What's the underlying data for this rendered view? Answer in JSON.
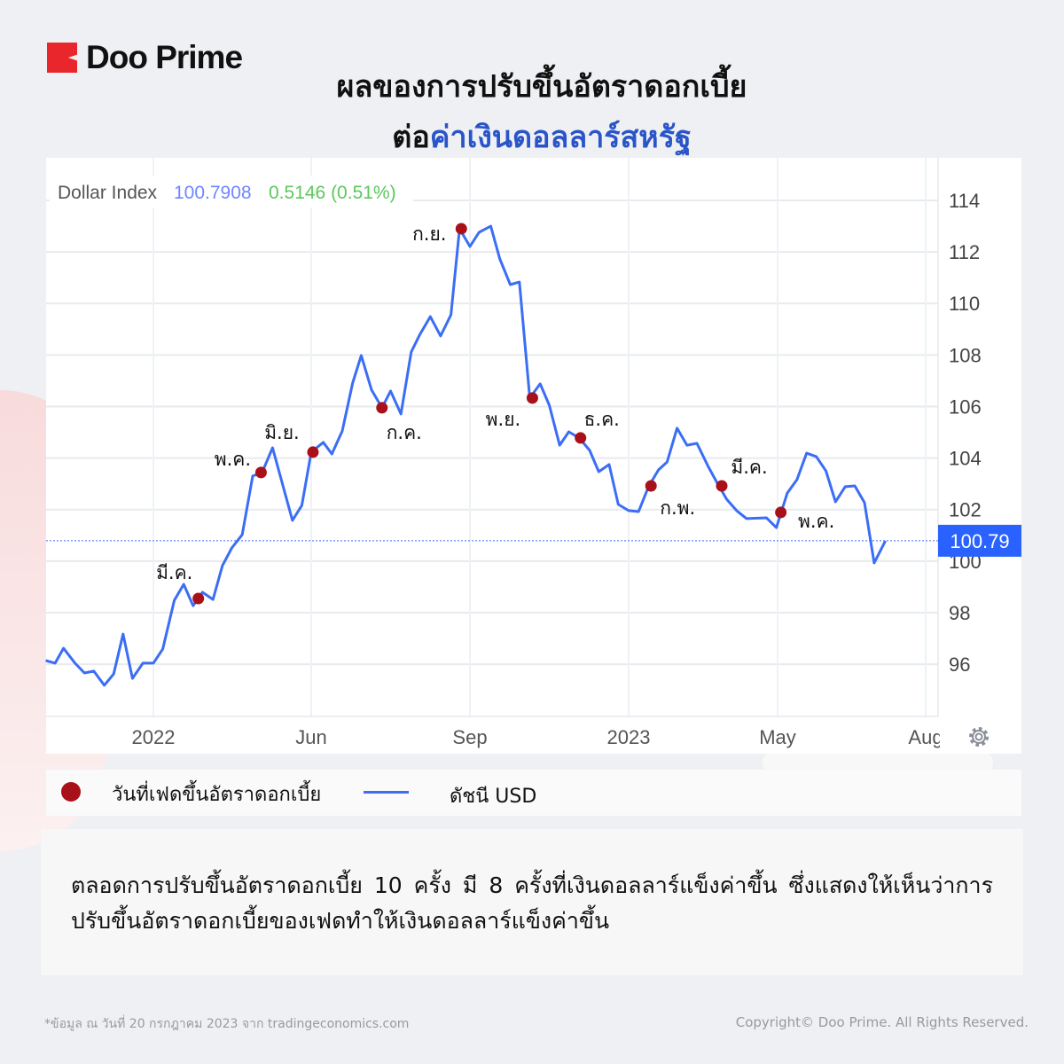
{
  "brand": {
    "name": "Doo Prime",
    "color": "#e8262c"
  },
  "title": {
    "line1": "ผลของการปรับขึ้นอัตราดอกเบี้ย",
    "line2_prefix": "ต่อ",
    "line2_highlight": "ค่าเงินดอลลาร์สหรัฐ",
    "highlight_color": "#2a55c8"
  },
  "chart_data": {
    "type": "line",
    "header": {
      "name": "Dollar Index",
      "price": "100.7908",
      "change": "0.5146 (0.51%)"
    },
    "ylim": [
      94,
      115
    ],
    "y_ticks": [
      96,
      98,
      100,
      102,
      104,
      106,
      108,
      110,
      112,
      114
    ],
    "x_ticks": [
      {
        "label": "2022",
        "date": "2022-01-01"
      },
      {
        "label": "Jun",
        "date": "2022-06-01"
      },
      {
        "label": "Sep",
        "date": "2022-09-01"
      },
      {
        "label": "2023",
        "date": "2023-01-01"
      },
      {
        "label": "May",
        "date": "2023-05-01"
      },
      {
        "label": "Aug",
        "date": "2023-08-01"
      }
    ],
    "last_price_label": "100.79",
    "grid": true,
    "line_color": "#3b6ef5",
    "marker_color": "#a8101a",
    "series": [
      {
        "name": "ดัชนี USD",
        "points": [
          [
            "2021-09-20",
            96.14
          ],
          [
            "2021-09-29",
            96.04
          ],
          [
            "2021-10-07",
            96.62
          ],
          [
            "2021-10-18",
            96.04
          ],
          [
            "2021-10-27",
            95.66
          ],
          [
            "2021-11-05",
            95.73
          ],
          [
            "2021-11-15",
            95.18
          ],
          [
            "2021-11-24",
            95.62
          ],
          [
            "2021-12-03",
            97.17
          ],
          [
            "2021-12-12",
            95.45
          ],
          [
            "2021-12-22",
            96.04
          ],
          [
            "2022-01-01",
            96.04
          ],
          [
            "2022-01-10",
            96.59
          ],
          [
            "2022-01-21",
            98.48
          ],
          [
            "2022-01-30",
            99.1
          ],
          [
            "2022-02-08",
            98.27
          ],
          [
            "2022-02-17",
            98.79
          ],
          [
            "2022-02-27",
            98.51
          ],
          [
            "2022-03-08",
            99.82
          ],
          [
            "2022-03-17",
            100.51
          ],
          [
            "2022-03-27",
            101.03
          ],
          [
            "2022-04-06",
            103.3
          ],
          [
            "2022-04-15",
            103.44
          ],
          [
            "2022-04-25",
            104.4
          ],
          [
            "2022-05-14",
            101.58
          ],
          [
            "2022-05-23",
            102.16
          ],
          [
            "2022-06-01",
            104.23
          ],
          [
            "2022-06-08",
            104.61
          ],
          [
            "2022-06-13",
            104.16
          ],
          [
            "2022-06-19",
            105.05
          ],
          [
            "2022-06-25",
            106.91
          ],
          [
            "2022-06-30",
            107.98
          ],
          [
            "2022-07-06",
            106.64
          ],
          [
            "2022-07-12",
            105.95
          ],
          [
            "2022-07-17",
            106.6
          ],
          [
            "2022-07-23",
            105.71
          ],
          [
            "2022-07-29",
            108.12
          ],
          [
            "2022-08-03",
            108.8
          ],
          [
            "2022-08-09",
            109.49
          ],
          [
            "2022-08-15",
            108.74
          ],
          [
            "2022-08-21",
            109.56
          ],
          [
            "2022-08-26",
            112.9
          ],
          [
            "2022-09-01",
            112.21
          ],
          [
            "2022-09-08",
            112.76
          ],
          [
            "2022-09-17",
            113.0
          ],
          [
            "2022-09-24",
            111.73
          ],
          [
            "2022-10-02",
            110.73
          ],
          [
            "2022-10-09",
            110.83
          ],
          [
            "2022-10-17",
            106.33
          ],
          [
            "2022-10-25",
            106.88
          ],
          [
            "2022-11-01",
            106.05
          ],
          [
            "2022-11-09",
            104.5
          ],
          [
            "2022-11-16",
            105.02
          ],
          [
            "2022-11-24",
            104.78
          ],
          [
            "2022-12-02",
            104.3
          ],
          [
            "2022-12-09",
            103.47
          ],
          [
            "2022-12-17",
            103.75
          ],
          [
            "2022-12-24",
            102.2
          ],
          [
            "2023-01-01",
            101.96
          ],
          [
            "2023-01-09",
            101.92
          ],
          [
            "2023-01-17",
            102.89
          ],
          [
            "2023-01-25",
            103.54
          ],
          [
            "2023-02-01",
            103.85
          ],
          [
            "2023-02-09",
            105.16
          ],
          [
            "2023-02-17",
            104.5
          ],
          [
            "2023-02-25",
            104.57
          ],
          [
            "2023-03-06",
            103.68
          ],
          [
            "2023-03-13",
            103.06
          ],
          [
            "2023-03-21",
            102.4
          ],
          [
            "2023-03-29",
            101.96
          ],
          [
            "2023-04-06",
            101.65
          ],
          [
            "2023-04-22",
            101.68
          ],
          [
            "2023-04-30",
            101.3
          ],
          [
            "2023-05-07",
            102.64
          ],
          [
            "2023-05-13",
            103.16
          ],
          [
            "2023-05-19",
            104.19
          ],
          [
            "2023-05-25",
            104.06
          ],
          [
            "2023-05-31",
            103.5
          ],
          [
            "2023-06-06",
            102.3
          ],
          [
            "2023-06-12",
            102.89
          ],
          [
            "2023-06-18",
            102.92
          ],
          [
            "2023-06-24",
            102.27
          ],
          [
            "2023-06-30",
            99.93
          ],
          [
            "2023-07-07",
            100.79
          ]
        ]
      }
    ],
    "markers": [
      {
        "label": "มี.ค.",
        "date": "2022-02-13",
        "value": 98.55
      },
      {
        "label": "พ.ค.",
        "date": "2022-04-14",
        "value": 103.44
      },
      {
        "label": "มิ.ย.",
        "date": "2022-06-02",
        "value": 104.23
      },
      {
        "label": "ก.ค.",
        "date": "2022-07-12",
        "value": 105.95
      },
      {
        "label": "ก.ย.",
        "date": "2022-08-27",
        "value": 112.9
      },
      {
        "label": "พ.ย.",
        "date": "2022-10-19",
        "value": 106.33
      },
      {
        "label": "ธ.ค.",
        "date": "2022-11-25",
        "value": 104.78
      },
      {
        "label": "ก.พ.",
        "date": "2023-01-19",
        "value": 102.92
      },
      {
        "label": "มี.ค.",
        "date": "2023-03-17",
        "value": 102.92
      },
      {
        "label": "พ.ค.",
        "date": "2023-05-03",
        "value": 101.89
      }
    ]
  },
  "legend": {
    "marker_label": "วันที่เฟดขึ้นอัตราดอกเบี้ย",
    "line_label": "ดัชนี USD"
  },
  "summary": "ตลอดการปรับขึ้นอัตราดอกเบี้ย 10 ครั้ง มี 8 ครั้งที่เงินดอลลาร์แข็งค่าขึ้น ซึ่งแสดงให้เห็นว่าการปรับขึ้นอัตราดอกเบี้ยของเฟดทำให้เงินดอลลาร์แข็งค่าขึ้น",
  "footer": {
    "source": "*ข้อมูล ณ วันที่ 20 กรกฎาคม 2023 จาก tradingeconomics.com",
    "copyright": "Copyright© Doo Prime. All Rights Reserved."
  },
  "icons": {
    "settings": "gear-icon"
  }
}
